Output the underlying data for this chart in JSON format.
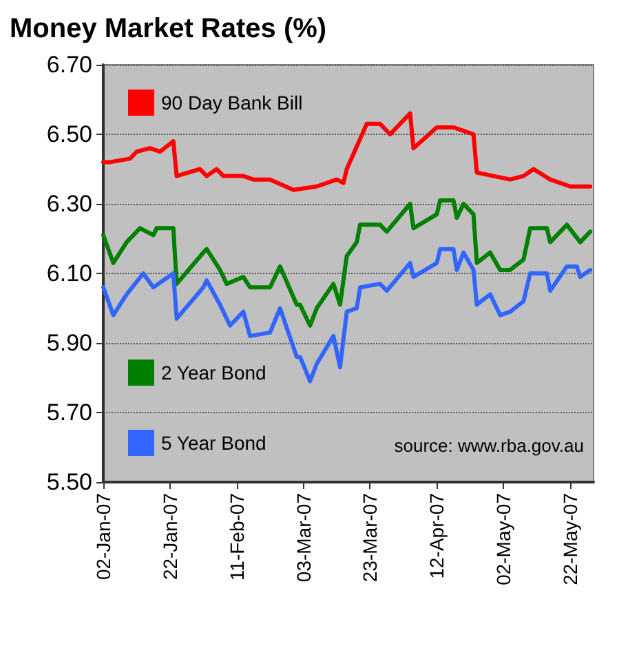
{
  "chart_data": {
    "type": "line",
    "title": "Money Market Rates (%)",
    "annotations": [
      "source: www.rba.gov.au"
    ],
    "xlim": [
      "2007-01-02",
      "2007-05-29"
    ],
    "xticks": [
      {
        "value": "2007-01-02",
        "label": "02-Jan-07"
      },
      {
        "value": "2007-01-22",
        "label": "22-Jan-07"
      },
      {
        "value": "2007-02-11",
        "label": "11-Feb-07"
      },
      {
        "value": "2007-03-03",
        "label": "03-Mar-07"
      },
      {
        "value": "2007-03-23",
        "label": "23-Mar-07"
      },
      {
        "value": "2007-04-12",
        "label": "12-Apr-07"
      },
      {
        "value": "2007-05-02",
        "label": "02-May-07"
      },
      {
        "value": "2007-05-22",
        "label": "22-May-07"
      }
    ],
    "ylim": [
      5.5,
      6.7
    ],
    "yticks": [
      {
        "value": 5.5,
        "label": "5.50"
      },
      {
        "value": 5.7,
        "label": "5.70"
      },
      {
        "value": 5.9,
        "label": "5.90"
      },
      {
        "value": 6.1,
        "label": "6.10"
      },
      {
        "value": 6.3,
        "label": "6.30"
      },
      {
        "value": 6.5,
        "label": "6.50"
      },
      {
        "value": 6.7,
        "label": "6.70"
      }
    ],
    "grid": "y",
    "legend": "left",
    "marker": "none",
    "line_style": "solid",
    "series": [
      {
        "name": "90 Day Bank Bill",
        "color": "#ff0000",
        "x": [
          "2007-01-02",
          "2007-01-04",
          "2007-01-10",
          "2007-01-12",
          "2007-01-16",
          "2007-01-19",
          "2007-01-23",
          "2007-01-24",
          "2007-01-31",
          "2007-02-02",
          "2007-02-05",
          "2007-02-07",
          "2007-02-13",
          "2007-02-16",
          "2007-02-21",
          "2007-02-28",
          "2007-03-07",
          "2007-03-13",
          "2007-03-15",
          "2007-03-16",
          "2007-03-22",
          "2007-03-26",
          "2007-03-29",
          "2007-04-04",
          "2007-04-05",
          "2007-04-12",
          "2007-04-17",
          "2007-04-23",
          "2007-04-24",
          "2007-04-29",
          "2007-05-04",
          "2007-05-08",
          "2007-05-11",
          "2007-05-16",
          "2007-05-22",
          "2007-05-28"
        ],
        "values": [
          6.42,
          6.42,
          6.43,
          6.45,
          6.46,
          6.45,
          6.48,
          6.38,
          6.4,
          6.38,
          6.4,
          6.38,
          6.38,
          6.37,
          6.37,
          6.34,
          6.35,
          6.37,
          6.36,
          6.4,
          6.53,
          6.53,
          6.5,
          6.56,
          6.46,
          6.52,
          6.52,
          6.5,
          6.39,
          6.38,
          6.37,
          6.38,
          6.4,
          6.37,
          6.35,
          6.35
        ]
      },
      {
        "name": "2 Year Bond",
        "color": "#008000",
        "x": [
          "2007-01-02",
          "2007-01-05",
          "2007-01-09",
          "2007-01-13",
          "2007-01-17",
          "2007-01-18",
          "2007-01-23",
          "2007-01-24",
          "2007-02-01",
          "2007-02-02",
          "2007-02-06",
          "2007-02-08",
          "2007-02-13",
          "2007-02-15",
          "2007-02-21",
          "2007-02-24",
          "2007-03-01",
          "2007-03-02",
          "2007-03-05",
          "2007-03-07",
          "2007-03-12",
          "2007-03-14",
          "2007-03-16",
          "2007-03-19",
          "2007-03-20",
          "2007-03-26",
          "2007-03-28",
          "2007-04-04",
          "2007-04-05",
          "2007-04-12",
          "2007-04-13",
          "2007-04-17",
          "2007-04-18",
          "2007-04-20",
          "2007-04-23",
          "2007-04-24",
          "2007-04-28",
          "2007-05-01",
          "2007-05-04",
          "2007-05-08",
          "2007-05-10",
          "2007-05-15",
          "2007-05-16",
          "2007-05-21",
          "2007-05-25",
          "2007-05-28"
        ],
        "values": [
          6.21,
          6.13,
          6.19,
          6.23,
          6.21,
          6.23,
          6.23,
          6.07,
          6.16,
          6.17,
          6.11,
          6.07,
          6.09,
          6.06,
          6.06,
          6.12,
          6.01,
          6.01,
          5.95,
          6.0,
          6.07,
          6.01,
          6.15,
          6.19,
          6.24,
          6.24,
          6.22,
          6.3,
          6.23,
          6.27,
          6.31,
          6.31,
          6.26,
          6.3,
          6.27,
          6.13,
          6.16,
          6.11,
          6.11,
          6.14,
          6.23,
          6.23,
          6.19,
          6.24,
          6.19,
          6.22
        ]
      },
      {
        "name": "5 Year Bond",
        "color": "#3366ff",
        "x": [
          "2007-01-02",
          "2007-01-05",
          "2007-01-09",
          "2007-01-14",
          "2007-01-17",
          "2007-01-23",
          "2007-01-24",
          "2007-02-01",
          "2007-02-02",
          "2007-02-06",
          "2007-02-09",
          "2007-02-13",
          "2007-02-15",
          "2007-02-21",
          "2007-02-24",
          "2007-03-01",
          "2007-03-02",
          "2007-03-05",
          "2007-03-07",
          "2007-03-12",
          "2007-03-14",
          "2007-03-16",
          "2007-03-19",
          "2007-03-20",
          "2007-03-26",
          "2007-03-28",
          "2007-04-04",
          "2007-04-05",
          "2007-04-12",
          "2007-04-13",
          "2007-04-17",
          "2007-04-18",
          "2007-04-20",
          "2007-04-23",
          "2007-04-24",
          "2007-04-28",
          "2007-05-01",
          "2007-05-04",
          "2007-05-08",
          "2007-05-10",
          "2007-05-15",
          "2007-05-16",
          "2007-05-21",
          "2007-05-24",
          "2007-05-25",
          "2007-05-28"
        ],
        "values": [
          6.06,
          5.98,
          6.04,
          6.1,
          6.06,
          6.1,
          5.97,
          6.06,
          6.08,
          6.01,
          5.95,
          5.99,
          5.92,
          5.93,
          6.0,
          5.86,
          5.86,
          5.79,
          5.84,
          5.92,
          5.83,
          5.99,
          6.0,
          6.06,
          6.07,
          6.05,
          6.13,
          6.09,
          6.13,
          6.17,
          6.17,
          6.11,
          6.16,
          6.11,
          6.01,
          6.04,
          5.98,
          5.99,
          6.02,
          6.1,
          6.1,
          6.05,
          6.12,
          6.12,
          6.09,
          6.11
        ]
      }
    ]
  }
}
